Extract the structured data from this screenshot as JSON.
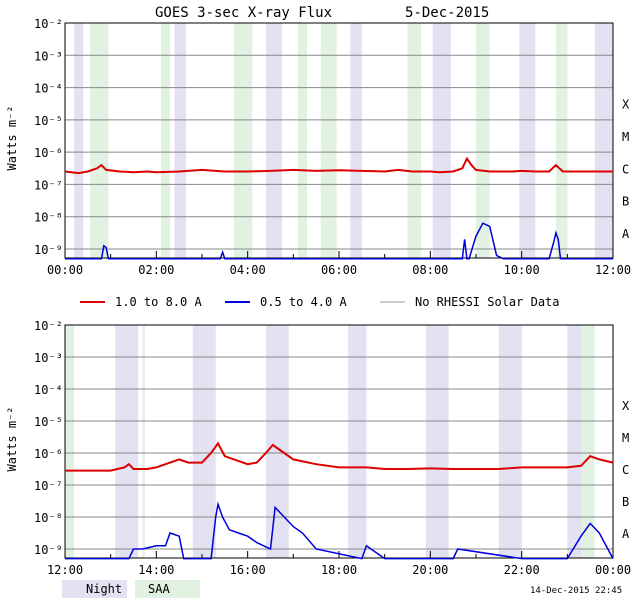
{
  "title": "GOES 3-sec X-ray Flux",
  "date": "5-Dec-2015",
  "timestamp": "14-Dec-2015 22:45",
  "legend": {
    "long": "1.0 to 8.0 A",
    "short": "0.5 to 4.0 A",
    "norhessi": "No RHESSI Solar Data",
    "night": "Night",
    "saa": "SAA"
  },
  "colors": {
    "long": "#dd0000",
    "short": "#0000dd",
    "norhessi": "#999999",
    "night": "#e2e2f2",
    "saa": "#e2f2e2",
    "grid": "#888888"
  },
  "ylabel": "Watts m⁻²",
  "yticks": [
    "10⁻²",
    "10⁻³",
    "10⁻⁴",
    "10⁻⁵",
    "10⁻⁶",
    "10⁻⁷",
    "10⁻⁸",
    "10⁻⁹"
  ],
  "classes": [
    "X",
    "M",
    "C",
    "B",
    "A"
  ],
  "chart_data": [
    {
      "type": "line",
      "title": "GOES 3-sec X-ray Flux    5-Dec-2015",
      "xlabel": "",
      "ylabel": "Watts m⁻²",
      "xlim": [
        0,
        12
      ],
      "ylim_log10": [
        -9.3,
        -2
      ],
      "yscale": "log",
      "xticks": [
        "00:00",
        "02:00",
        "04:00",
        "06:00",
        "08:00",
        "10:00",
        "12:00"
      ],
      "night_hours": [
        [
          0.2,
          0.4
        ],
        [
          2.4,
          2.65
        ],
        [
          4.4,
          4.75
        ],
        [
          6.25,
          6.5
        ],
        [
          8.05,
          8.45
        ],
        [
          9.95,
          10.3
        ],
        [
          11.6,
          12.0
        ]
      ],
      "saa_hours": [
        [
          0.55,
          0.95
        ],
        [
          2.1,
          2.3
        ],
        [
          3.7,
          4.1
        ],
        [
          5.1,
          5.3
        ],
        [
          5.6,
          5.95
        ],
        [
          7.5,
          7.8
        ],
        [
          9.0,
          9.3
        ],
        [
          10.75,
          11.0
        ]
      ],
      "series": [
        {
          "name": "1.0 to 8.0 A",
          "x": [
            0,
            0.3,
            0.5,
            0.7,
            0.8,
            0.9,
            1.2,
            1.5,
            1.8,
            2.0,
            2.5,
            3.0,
            3.5,
            4.0,
            4.5,
            5.0,
            5.5,
            6.0,
            6.5,
            7.0,
            7.3,
            7.6,
            8.0,
            8.2,
            8.5,
            8.7,
            8.8,
            8.9,
            9.0,
            9.3,
            9.6,
            9.8,
            10.0,
            10.3,
            10.6,
            10.75,
            10.9,
            11.2,
            11.5,
            12.0
          ],
          "y": [
            -6.6,
            -6.65,
            -6.6,
            -6.5,
            -6.4,
            -6.55,
            -6.6,
            -6.62,
            -6.6,
            -6.62,
            -6.6,
            -6.55,
            -6.6,
            -6.6,
            -6.58,
            -6.55,
            -6.58,
            -6.56,
            -6.58,
            -6.6,
            -6.55,
            -6.6,
            -6.6,
            -6.62,
            -6.6,
            -6.5,
            -6.2,
            -6.4,
            -6.55,
            -6.6,
            -6.6,
            -6.6,
            -6.58,
            -6.6,
            -6.6,
            -6.4,
            -6.6,
            -6.6,
            -6.6,
            -6.6
          ]
        },
        {
          "name": "0.5 to 4.0 A",
          "x": [
            0,
            0.8,
            0.85,
            0.9,
            0.95,
            1.0,
            3.4,
            3.45,
            3.5,
            3.55,
            8.7,
            8.75,
            8.8,
            8.85,
            9.0,
            9.15,
            9.3,
            9.45,
            9.6,
            10.6,
            10.7,
            10.75,
            10.8,
            10.85,
            12.0
          ],
          "y": [
            -9.3,
            -9.3,
            -8.9,
            -8.95,
            -9.3,
            -9.3,
            -9.3,
            -9.1,
            -9.3,
            -9.3,
            -9.3,
            -8.7,
            -9.3,
            -9.3,
            -8.6,
            -8.2,
            -8.3,
            -9.2,
            -9.3,
            -9.3,
            -8.8,
            -8.5,
            -8.7,
            -9.3,
            -9.3
          ]
        }
      ]
    },
    {
      "type": "line",
      "title": "",
      "xlabel": "",
      "ylabel": "Watts m⁻²",
      "xlim": [
        12,
        24
      ],
      "ylim_log10": [
        -9.3,
        -2
      ],
      "yscale": "log",
      "xticks": [
        "12:00",
        "14:00",
        "16:00",
        "18:00",
        "20:00",
        "22:00",
        "00:00"
      ],
      "night_hours": [
        [
          13.1,
          13.6
        ],
        [
          14.8,
          15.3
        ],
        [
          16.4,
          16.9
        ],
        [
          18.2,
          18.6
        ],
        [
          19.9,
          20.4
        ],
        [
          21.5,
          22.0
        ],
        [
          23.0,
          23.3
        ]
      ],
      "saa_hours": [
        [
          12.0,
          12.2
        ],
        [
          13.7,
          13.75
        ],
        [
          23.3,
          23.6
        ]
      ],
      "series": [
        {
          "name": "1.0 to 8.0 A",
          "x": [
            12.0,
            12.5,
            13.0,
            13.3,
            13.4,
            13.5,
            13.8,
            14.0,
            14.3,
            14.5,
            14.7,
            15.0,
            15.2,
            15.35,
            15.5,
            15.7,
            16.0,
            16.2,
            16.4,
            16.55,
            16.8,
            17.0,
            17.5,
            18.0,
            18.6,
            19.0,
            19.5,
            20.0,
            20.5,
            21.0,
            21.5,
            22.0,
            22.5,
            23.0,
            23.3,
            23.5,
            23.7,
            24.0
          ],
          "y": [
            -6.55,
            -6.55,
            -6.55,
            -6.45,
            -6.35,
            -6.5,
            -6.5,
            -6.45,
            -6.3,
            -6.2,
            -6.3,
            -6.3,
            -6.0,
            -5.7,
            -6.1,
            -6.2,
            -6.35,
            -6.3,
            -6.0,
            -5.75,
            -6.0,
            -6.2,
            -6.35,
            -6.45,
            -6.45,
            -6.5,
            -6.5,
            -6.48,
            -6.5,
            -6.5,
            -6.5,
            -6.45,
            -6.45,
            -6.45,
            -6.4,
            -6.1,
            -6.2,
            -6.3
          ]
        },
        {
          "name": "0.5 to 4.0 A",
          "x": [
            12.0,
            13.4,
            13.5,
            13.7,
            14.0,
            14.2,
            14.3,
            14.5,
            14.6,
            15.0,
            15.2,
            15.3,
            15.35,
            15.45,
            15.6,
            15.8,
            16.0,
            16.2,
            16.5,
            16.6,
            16.8,
            17.0,
            17.2,
            17.5,
            18.5,
            18.6,
            19.0,
            19.5,
            20.0,
            20.5,
            20.6,
            22.0,
            22.5,
            23.0,
            23.3,
            23.5,
            23.7,
            24.0
          ],
          "y": [
            -9.3,
            -9.3,
            -9.0,
            -9.0,
            -8.9,
            -8.9,
            -8.5,
            -8.6,
            -9.3,
            -9.3,
            -9.3,
            -8.0,
            -7.6,
            -8.0,
            -8.4,
            -8.5,
            -8.6,
            -8.8,
            -9.0,
            -7.7,
            -8.0,
            -8.3,
            -8.5,
            -9.0,
            -9.3,
            -8.9,
            -9.3,
            -9.3,
            -9.3,
            -9.3,
            -9.0,
            -9.3,
            -9.3,
            -9.3,
            -8.6,
            -8.2,
            -8.5,
            -9.3
          ]
        }
      ]
    }
  ]
}
